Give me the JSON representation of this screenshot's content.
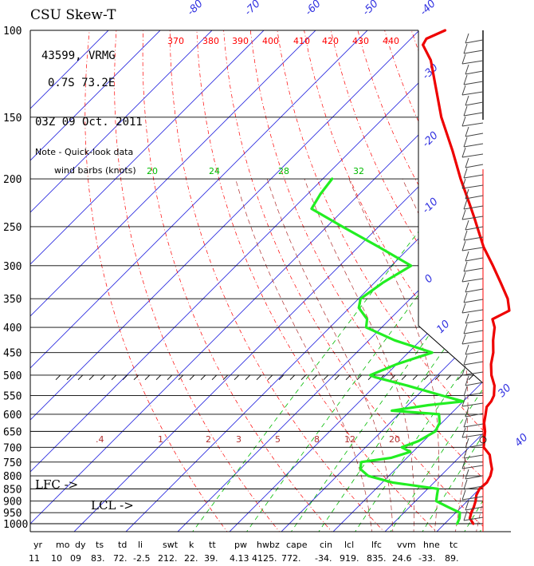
{
  "title": "CSU Skew-T",
  "station": "43599, VRMG",
  "location": "0.7S  73.2E",
  "datetime": "03Z 09 Oct. 2011",
  "note": "Note - Quick-look data",
  "wind_barbs_label": "wind barbs (knots)",
  "lfc_label": "LFC  ->",
  "lcl_label": "LCL  ->",
  "colors": {
    "temperature": "#ee0000",
    "dewpoint": "#22ee22",
    "isotherm": "#3030e0",
    "dry_adiabat": "#ff0000",
    "mixing_ratio": "#00bb00",
    "moist_adiabat": "#b03030",
    "isobar": "#000000",
    "wind_axis": "#ff0000"
  },
  "isotherm_labels": [
    "-80",
    "-70",
    "-60",
    "-50",
    "-40",
    "-30",
    "-20",
    "-10",
    "0",
    "10",
    "30",
    "40"
  ],
  "theta_labels": [
    "370",
    "380",
    "390",
    "400",
    "410",
    "420",
    "430",
    "440"
  ],
  "mixing_ratio_labels": [
    "20",
    "24",
    "28",
    "32"
  ],
  "moist_adiabat_labels": [
    ".4",
    "1",
    "2",
    "3",
    "5",
    "8",
    "12",
    "20"
  ],
  "indices": {
    "headers": [
      "yr",
      "mo",
      "dy",
      "ts",
      "td",
      "li",
      "swt",
      "k",
      "tt",
      "pw",
      "hwbz",
      "cape",
      "cin",
      "lcl",
      "lfc",
      "vvm",
      "hne",
      "tc"
    ],
    "values": [
      "11",
      "10",
      "09",
      "83.",
      "72.",
      "-2.5",
      "212.",
      "22.",
      "39.",
      "4.13",
      "4125.",
      "772.",
      "-34.",
      "919.",
      "835.",
      "24.6",
      "-33.",
      "89."
    ]
  },
  "chart_data": {
    "type": "line",
    "title": "CSU Skew-T",
    "ylabel": "",
    "y_scale": "log",
    "ylim": [
      1000,
      100
    ],
    "pressure_levels": [
      100,
      150,
      200,
      250,
      300,
      350,
      400,
      450,
      500,
      550,
      600,
      650,
      700,
      750,
      800,
      850,
      900,
      950,
      1000
    ],
    "series": [
      {
        "points": [
          [
            1000,
            25.5
          ],
          [
            975,
            23.8
          ],
          [
            950,
            23.0
          ],
          [
            925,
            22.4
          ],
          [
            900,
            21.6
          ],
          [
            875,
            20.6
          ],
          [
            850,
            20.0
          ],
          [
            825,
            20.2
          ],
          [
            800,
            19.6
          ],
          [
            775,
            18.6
          ],
          [
            750,
            17.0
          ],
          [
            725,
            15.4
          ],
          [
            700,
            12.8
          ],
          [
            675,
            11.4
          ],
          [
            650,
            10.0
          ],
          [
            625,
            8.2
          ],
          [
            600,
            6.8
          ],
          [
            580,
            5.6
          ],
          [
            565,
            5.4
          ],
          [
            550,
            4.8
          ],
          [
            525,
            3.0
          ],
          [
            500,
            0.4
          ],
          [
            475,
            -1.8
          ],
          [
            450,
            -3.6
          ],
          [
            425,
            -6.0
          ],
          [
            400,
            -8.2
          ],
          [
            385,
            -10.2
          ],
          [
            370,
            -8.6
          ],
          [
            350,
            -11.2
          ],
          [
            325,
            -15.6
          ],
          [
            300,
            -20.4
          ],
          [
            275,
            -25.8
          ],
          [
            250,
            -31.0
          ],
          [
            240,
            -33.2
          ],
          [
            225,
            -36.8
          ],
          [
            200,
            -43.4
          ],
          [
            175,
            -50.5
          ],
          [
            150,
            -59.0
          ],
          [
            130,
            -66.0
          ],
          [
            115,
            -72.0
          ],
          [
            107,
            -76.5
          ],
          [
            104,
            -77.0
          ],
          [
            100,
            -75.0
          ]
        ]
      },
      {
        "points": [
          [
            1000,
            22.4
          ],
          [
            975,
            21.8
          ],
          [
            950,
            20.8
          ],
          [
            925,
            17.4
          ],
          [
            900,
            14.0
          ],
          [
            875,
            13.0
          ],
          [
            850,
            12.0
          ],
          [
            825,
            2.0
          ],
          [
            800,
            -4.0
          ],
          [
            775,
            -6.8
          ],
          [
            750,
            -8.0
          ],
          [
            735,
            -3.0
          ],
          [
            715,
            -0.5
          ],
          [
            700,
            -3.0
          ],
          [
            680,
            -1.0
          ],
          [
            650,
            0.4
          ],
          [
            625,
            -0.4
          ],
          [
            600,
            -2.2
          ],
          [
            590,
            -12.0
          ],
          [
            575,
            -6.0
          ],
          [
            565,
            0.0
          ],
          [
            550,
            -5.2
          ],
          [
            525,
            -13.8
          ],
          [
            505,
            -21.6
          ],
          [
            500,
            -23.0
          ],
          [
            475,
            -20.0
          ],
          [
            450,
            -15.4
          ],
          [
            425,
            -25.0
          ],
          [
            400,
            -33.0
          ],
          [
            385,
            -34.4
          ],
          [
            365,
            -38.2
          ],
          [
            350,
            -39.6
          ],
          [
            325,
            -38.4
          ],
          [
            300,
            -36.2
          ],
          [
            275,
            -46.0
          ],
          [
            250,
            -57.0
          ],
          [
            230,
            -66.4
          ],
          [
            215,
            -67.5
          ],
          [
            200,
            -68.2
          ]
        ]
      }
    ],
    "indices": {
      "ts": 83,
      "td": 72,
      "li": -2.5,
      "swt": 212,
      "k": 22,
      "tt": 39,
      "pw": 4.13,
      "hwbz": 4125,
      "cape": 772,
      "cin": -34,
      "lcl": 919,
      "lfc": 835,
      "vvm": 24.6,
      "hne": -33,
      "tc": 89
    }
  }
}
